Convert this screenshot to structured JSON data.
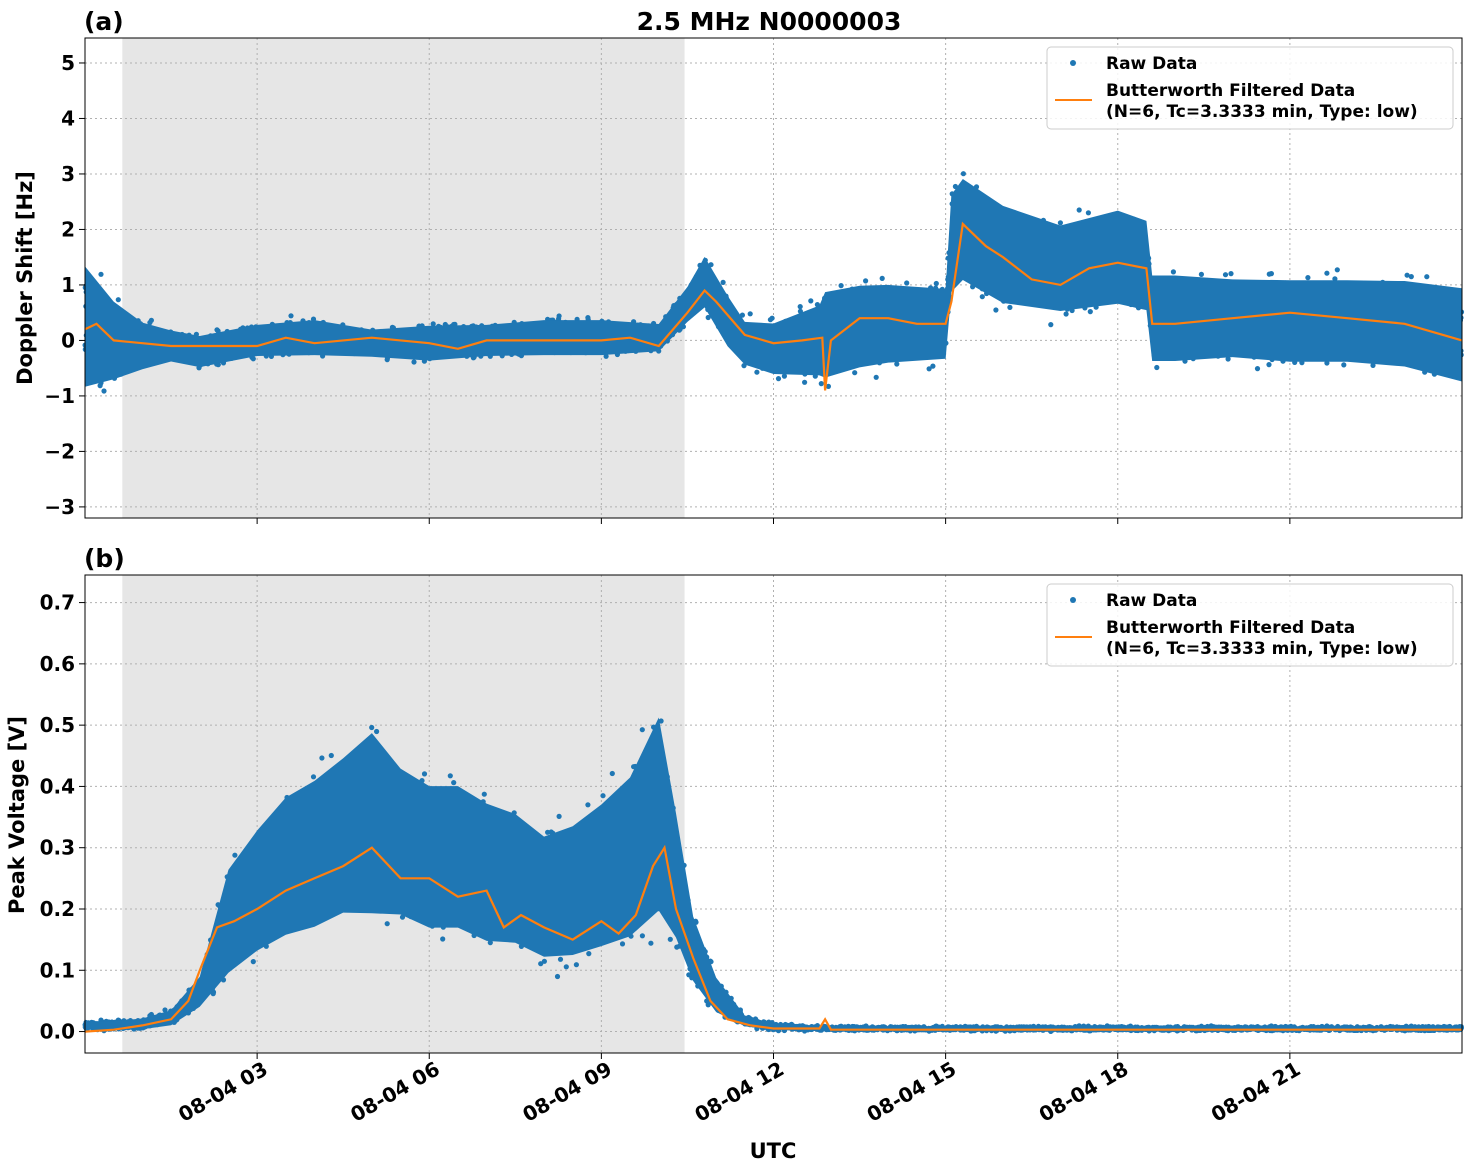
{
  "figure_title": "2.5 MHz N0000003",
  "xlabel": "UTC",
  "colors": {
    "raw": "#1f77b4",
    "filtered": "#ff7f0e",
    "shade": "#e6e6e6"
  },
  "legend": {
    "raw": "Raw Data",
    "filtered_line1": "Butterworth Filtered Data",
    "filtered_line2": "(N=6, Tc=3.3333 min, Type: low)"
  },
  "x_ticks": [
    "08-04 03",
    "08-04 06",
    "08-04 09",
    "08-04 12",
    "08-04 15",
    "08-04 18",
    "08-04 21"
  ],
  "chart_data": [
    {
      "type": "scatter",
      "panel_label": "(a)",
      "ylabel": "Doppler Shift [Hz]",
      "xlim": [
        0,
        24
      ],
      "x_unit": "hours UTC on 08-04",
      "ylim": [
        -3.2,
        5.45
      ],
      "y_ticks": [
        5,
        4,
        3,
        2,
        1,
        0,
        -1,
        -2,
        -3
      ],
      "y_tick_labels": [
        "5",
        "4",
        "3",
        "2",
        "1",
        "0",
        "−1",
        "−2",
        "−3"
      ],
      "x_tick_hours": [
        3,
        6,
        9,
        12,
        15,
        18,
        21
      ],
      "shaded_interval": [
        0.65,
        10.45
      ],
      "grid": true,
      "legend_position": "top-right",
      "series": [
        {
          "name": "Raw Data",
          "kind": "scatter-band",
          "x": [
            0.0,
            0.5,
            1.0,
            1.5,
            2.0,
            3.0,
            4.0,
            5.0,
            6.0,
            7.0,
            8.0,
            9.0,
            10.0,
            10.5,
            10.8,
            11.2,
            11.5,
            12.0,
            12.8,
            12.9,
            13.5,
            14.0,
            15.0,
            15.1,
            15.3,
            16.0,
            17.0,
            18.0,
            18.5,
            18.6,
            19.0,
            20.0,
            21.0,
            22.0,
            23.0,
            24.0
          ],
          "y_low": [
            -1.3,
            -1.0,
            -0.7,
            -0.5,
            -0.6,
            -0.4,
            -0.4,
            -0.4,
            -0.5,
            -0.4,
            -0.4,
            -0.4,
            -0.3,
            0.2,
            0.4,
            -0.3,
            -0.6,
            -0.8,
            -0.9,
            -1.0,
            -0.8,
            -0.7,
            -0.6,
            0.5,
            0.7,
            0.3,
            0.2,
            0.3,
            0.2,
            -0.7,
            -0.7,
            -0.6,
            -0.7,
            -0.7,
            -0.8,
            -1.1
          ],
          "y_high": [
            1.8,
            1.0,
            0.5,
            0.3,
            0.2,
            0.4,
            0.5,
            0.3,
            0.4,
            0.4,
            0.5,
            0.5,
            0.4,
            1.1,
            1.7,
            1.0,
            0.5,
            0.5,
            0.9,
            1.2,
            1.3,
            1.3,
            1.2,
            3.0,
            3.3,
            2.8,
            2.4,
            2.7,
            2.5,
            1.5,
            1.5,
            1.4,
            1.4,
            1.4,
            1.4,
            1.3
          ]
        },
        {
          "name": "Butterworth Filtered Data",
          "kind": "line",
          "x": [
            0.0,
            0.2,
            0.5,
            1.0,
            1.5,
            2.0,
            3.0,
            3.5,
            4.0,
            5.0,
            6.0,
            6.5,
            7.0,
            8.0,
            9.0,
            9.5,
            10.0,
            10.5,
            10.8,
            11.0,
            11.5,
            12.0,
            12.5,
            12.85,
            12.9,
            13.0,
            13.5,
            14.0,
            14.5,
            15.0,
            15.1,
            15.3,
            15.7,
            16.0,
            16.5,
            17.0,
            17.5,
            18.0,
            18.5,
            18.6,
            19.0,
            20.0,
            21.0,
            22.0,
            23.0,
            24.0
          ],
          "y": [
            0.2,
            0.3,
            0.0,
            -0.05,
            -0.1,
            -0.1,
            -0.1,
            0.05,
            -0.05,
            0.05,
            -0.05,
            -0.15,
            0.0,
            0.0,
            0.0,
            0.05,
            -0.1,
            0.5,
            0.9,
            0.7,
            0.1,
            -0.05,
            0.0,
            0.05,
            -0.9,
            0.0,
            0.4,
            0.4,
            0.3,
            0.3,
            0.7,
            2.1,
            1.7,
            1.5,
            1.1,
            1.0,
            1.3,
            1.4,
            1.3,
            0.3,
            0.3,
            0.4,
            0.5,
            0.4,
            0.3,
            0.0
          ]
        }
      ]
    },
    {
      "type": "scatter",
      "panel_label": "(b)",
      "ylabel": "Peak Voltage [V]",
      "xlabel": "UTC",
      "xlim": [
        0,
        24
      ],
      "x_unit": "hours UTC on 08-04",
      "ylim": [
        -0.035,
        0.745
      ],
      "y_ticks": [
        0.7,
        0.6,
        0.5,
        0.4,
        0.3,
        0.2,
        0.1,
        0.0
      ],
      "y_tick_labels": [
        "0.7",
        "0.6",
        "0.5",
        "0.4",
        "0.3",
        "0.2",
        "0.1",
        "0.0"
      ],
      "x_tick_hours": [
        3,
        6,
        9,
        12,
        15,
        18,
        21
      ],
      "x_tick_labels": [
        "08-04 03",
        "08-04 06",
        "08-04 09",
        "08-04 12",
        "08-04 15",
        "08-04 18",
        "08-04 21"
      ],
      "shaded_interval": [
        0.65,
        10.45
      ],
      "grid": true,
      "legend_position": "top-right",
      "series": [
        {
          "name": "Raw Data",
          "kind": "scatter-band",
          "x": [
            0.0,
            0.5,
            1.0,
            1.5,
            2.0,
            2.5,
            3.0,
            3.5,
            4.0,
            4.5,
            5.0,
            5.5,
            6.0,
            6.5,
            7.0,
            7.5,
            8.0,
            8.5,
            9.0,
            9.5,
            10.0,
            10.3,
            10.6,
            11.0,
            11.5,
            12.0,
            13.0,
            24.0
          ],
          "y_low": [
            0.0,
            0.0,
            0.0,
            0.005,
            0.03,
            0.06,
            0.09,
            0.11,
            0.12,
            0.14,
            0.13,
            0.14,
            0.12,
            0.12,
            0.1,
            0.1,
            0.08,
            0.08,
            0.09,
            0.1,
            0.13,
            0.11,
            0.06,
            0.02,
            0.005,
            0.0,
            0.0,
            0.0
          ],
          "y_high": [
            0.02,
            0.02,
            0.025,
            0.04,
            0.1,
            0.3,
            0.37,
            0.43,
            0.46,
            0.5,
            0.55,
            0.48,
            0.45,
            0.45,
            0.42,
            0.4,
            0.36,
            0.38,
            0.42,
            0.47,
            0.58,
            0.4,
            0.21,
            0.1,
            0.03,
            0.015,
            0.01,
            0.01
          ]
        },
        {
          "name": "Butterworth Filtered Data",
          "kind": "line",
          "x": [
            0.0,
            0.5,
            1.0,
            1.5,
            1.8,
            2.0,
            2.3,
            2.6,
            3.0,
            3.5,
            4.0,
            4.5,
            5.0,
            5.5,
            6.0,
            6.5,
            7.0,
            7.3,
            7.6,
            8.0,
            8.5,
            9.0,
            9.3,
            9.6,
            9.9,
            10.1,
            10.3,
            10.6,
            10.9,
            11.2,
            11.6,
            12.0,
            12.8,
            12.9,
            13.0,
            24.0
          ],
          "y": [
            0.0,
            0.003,
            0.01,
            0.02,
            0.05,
            0.1,
            0.17,
            0.18,
            0.2,
            0.23,
            0.25,
            0.27,
            0.3,
            0.25,
            0.25,
            0.22,
            0.23,
            0.17,
            0.19,
            0.17,
            0.15,
            0.18,
            0.16,
            0.19,
            0.27,
            0.3,
            0.2,
            0.12,
            0.05,
            0.02,
            0.01,
            0.005,
            0.005,
            0.02,
            0.003,
            0.003
          ]
        }
      ]
    }
  ]
}
